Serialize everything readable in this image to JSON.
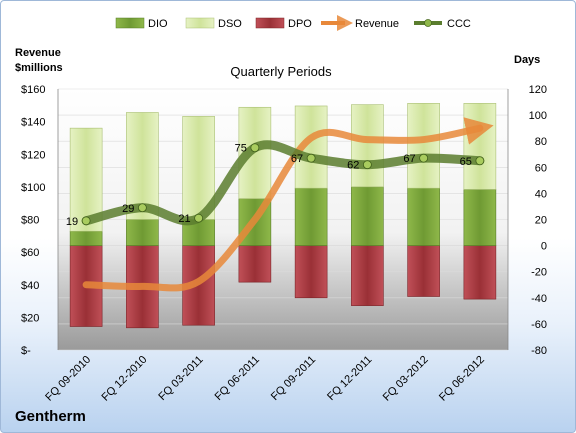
{
  "chart_data": {
    "type": "bar",
    "title": "Quarterly Periods",
    "company": "Gentherm",
    "left_axis_title": [
      "Revenue",
      "$millions"
    ],
    "right_axis_title": "Days",
    "categories": [
      "FQ 09-2010",
      "FQ 12-2010",
      "FQ 03-2011",
      "FQ 06-2011",
      "FQ 09-2011",
      "FQ 12-2011",
      "FQ 03-2012",
      "FQ 06-2012"
    ],
    "left_ticks": [
      "$-",
      "$20",
      "$40",
      "$60",
      "$80",
      "$100",
      "$120",
      "$140",
      "$160"
    ],
    "right_ticks": [
      "-80",
      "-60",
      "-40",
      "-20",
      "0",
      "20",
      "40",
      "60",
      "80",
      "100",
      "120"
    ],
    "left_ylim": [
      0,
      160
    ],
    "right_ylim": [
      -80,
      120
    ],
    "series": [
      {
        "name": "DIO",
        "axis": "right",
        "type": "stacked-bar",
        "color": "#7aa33a",
        "values": [
          11,
          20,
          20,
          36,
          44,
          45,
          44,
          43
        ]
      },
      {
        "name": "DSO",
        "axis": "right",
        "type": "stacked-bar",
        "color": "#d6e8a8",
        "values": [
          79,
          82,
          79,
          70,
          63,
          63,
          65,
          66
        ]
      },
      {
        "name": "DPO",
        "axis": "right",
        "type": "negative-bar",
        "color": "#a8383c",
        "values": [
          -62,
          -63,
          -61,
          -28,
          -40,
          -46,
          -39,
          -41
        ]
      },
      {
        "name": "Revenue",
        "axis": "left",
        "type": "line",
        "color": "#e8883a",
        "values": [
          40,
          39,
          42,
          80,
          130,
          129,
          129,
          136
        ]
      },
      {
        "name": "CCC",
        "axis": "right",
        "type": "line",
        "color": "#5a7d2e",
        "values": [
          19,
          29,
          21,
          75,
          67,
          62,
          67,
          65
        ]
      }
    ],
    "ccc_labels": [
      "19",
      "29",
      "21",
      "75",
      "67",
      "62",
      "67",
      "65"
    ],
    "grid": true,
    "legend": "top"
  }
}
